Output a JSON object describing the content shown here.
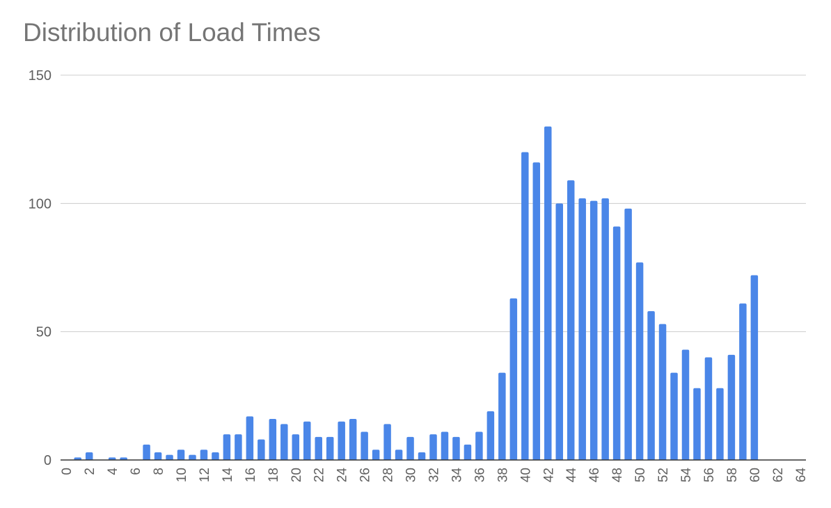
{
  "chart_data": {
    "type": "bar",
    "title": "Distribution of Load Times",
    "xlabel": "",
    "ylabel": "",
    "ylim": [
      0,
      150
    ],
    "xlim": [
      0,
      65
    ],
    "y_ticks": [
      "0",
      "50",
      "100",
      "150"
    ],
    "x_ticks": [
      "0",
      "2",
      "4",
      "6",
      "8",
      "10",
      "12",
      "14",
      "16",
      "18",
      "20",
      "22",
      "24",
      "26",
      "28",
      "30",
      "32",
      "34",
      "36",
      "38",
      "40",
      "42",
      "44",
      "46",
      "48",
      "50",
      "52",
      "54",
      "56",
      "58",
      "60",
      "62",
      "64"
    ],
    "grid": true,
    "legend": "none",
    "bar_color": "#4a86e8",
    "x": [
      1,
      2,
      4,
      5,
      7,
      8,
      9,
      10,
      11,
      12,
      13,
      14,
      15,
      16,
      17,
      18,
      19,
      20,
      21,
      22,
      23,
      24,
      25,
      26,
      27,
      28,
      29,
      30,
      31,
      32,
      33,
      34,
      35,
      36,
      37,
      38,
      39,
      40,
      41,
      42,
      43,
      44,
      45,
      46,
      47,
      48,
      49,
      50,
      51,
      52,
      53,
      54,
      55,
      56,
      57,
      58,
      59,
      60
    ],
    "values": [
      1,
      3,
      1,
      1,
      6,
      3,
      2,
      4,
      2,
      4,
      3,
      10,
      10,
      17,
      8,
      16,
      14,
      10,
      15,
      9,
      9,
      15,
      16,
      11,
      4,
      14,
      4,
      9,
      3,
      10,
      11,
      9,
      6,
      11,
      19,
      34,
      63,
      120,
      116,
      130,
      100,
      109,
      102,
      101,
      102,
      91,
      98,
      77,
      58,
      53,
      34,
      43,
      28,
      40,
      28,
      41,
      61,
      72
    ]
  }
}
